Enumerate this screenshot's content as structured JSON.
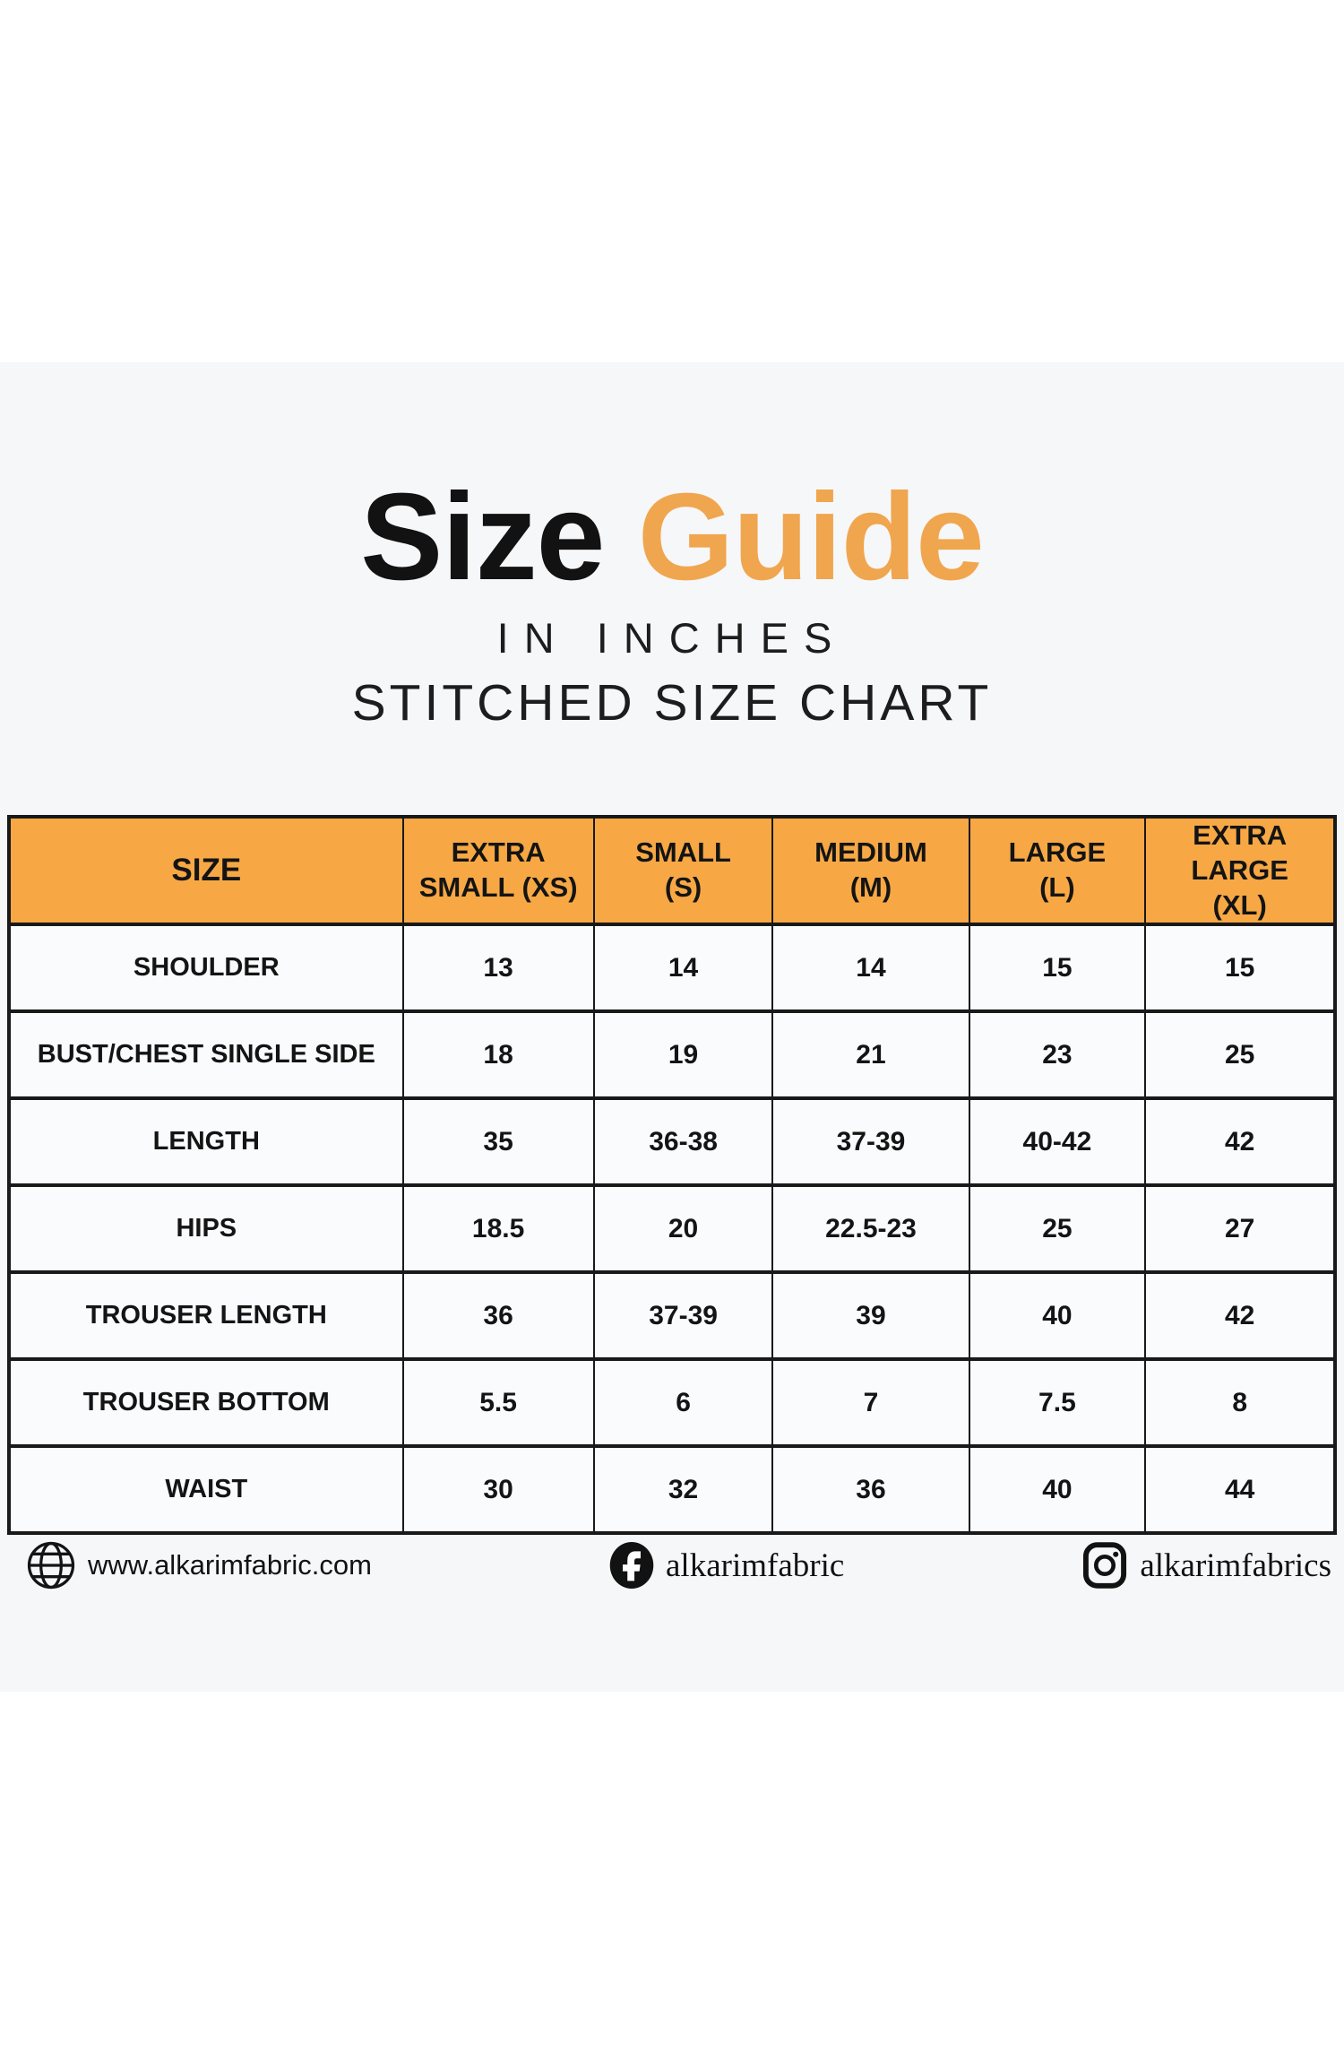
{
  "title": {
    "black": "Size",
    "orange": "Guide"
  },
  "subtitles": {
    "units": "IN INCHES",
    "chart": "STITCHED SIZE CHART"
  },
  "colors": {
    "accent_orange": "#f0a64e",
    "header_orange": "#f7a845",
    "band_gray": "#f6f7f9",
    "ink": "#161616"
  },
  "chart_data": {
    "type": "table",
    "title": "Size Guide - Stitched Size Chart (in inches)",
    "columns": [
      "SIZE",
      "EXTRA SMALL (XS)",
      "SMALL (S)",
      "MEDIUM (M)",
      "LARGE (L)",
      "EXTRA LARGE (XL)"
    ],
    "rows": [
      [
        "SHOULDER",
        "13",
        "14",
        "14",
        "15",
        "15"
      ],
      [
        "BUST/CHEST SINGLE SIDE",
        "18",
        "19",
        "21",
        "23",
        "25"
      ],
      [
        "LENGTH",
        "35",
        "36-38",
        "37-39",
        "40-42",
        "42"
      ],
      [
        "HIPS",
        "18.5",
        "20",
        "22.5-23",
        "25",
        "27"
      ],
      [
        "TROUSER LENGTH",
        "36",
        "37-39",
        "39",
        "40",
        "42"
      ],
      [
        "TROUSER BOTTOM",
        "5.5",
        "6",
        "7",
        "7.5",
        "8"
      ],
      [
        "WAIST",
        "30",
        "32",
        "36",
        "40",
        "44"
      ]
    ]
  },
  "table": {
    "header": [
      {
        "l1": "SIZE",
        "l2": ""
      },
      {
        "l1": "EXTRA",
        "l2": "SMALL (XS)"
      },
      {
        "l1": "SMALL",
        "l2": "(S)"
      },
      {
        "l1": "MEDIUM",
        "l2": "(M)"
      },
      {
        "l1": "LARGE",
        "l2": "(L)"
      },
      {
        "l1": "EXTRA LARGE",
        "l2": "(XL)"
      }
    ]
  },
  "footer": {
    "website": "www.alkarimfabric.com",
    "facebook": "alkarimfabric",
    "instagram": "alkarimfabrics"
  }
}
